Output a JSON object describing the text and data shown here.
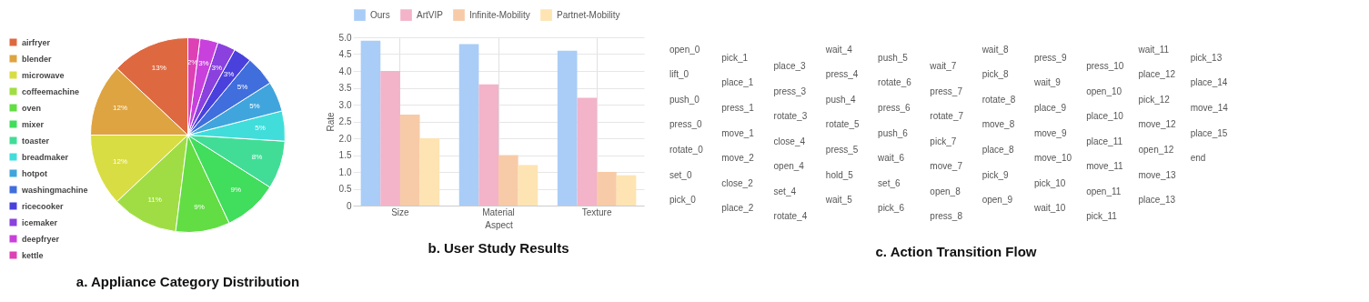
{
  "chart_data": [
    {
      "type": "pie",
      "title": "a. Appliance Category Distribution",
      "categories": [
        "airfryer",
        "blender",
        "microwave",
        "coffeemachine",
        "oven",
        "mixer",
        "toaster",
        "breadmaker",
        "hotpot",
        "washingmachine",
        "ricecooker",
        "icemaker",
        "deepfryer",
        "kettle"
      ],
      "values": [
        13,
        12,
        12,
        11,
        9,
        9,
        8,
        5,
        5,
        5,
        3,
        3,
        3,
        2
      ],
      "value_labels": [
        "13%",
        "12%",
        "12%",
        "11%",
        "9%",
        "9%",
        "8%",
        "5%",
        "5%",
        "5%",
        "3%",
        "3%",
        "3%",
        "2%"
      ],
      "colors": [
        "#de6941",
        "#dea441",
        "#d9dd44",
        "#a0dd44",
        "#62dd44",
        "#41dd5c",
        "#41dd97",
        "#41dddb",
        "#41a5dd",
        "#416edd",
        "#4a41dd",
        "#8a41dd",
        "#c941dd",
        "#dd41b4"
      ],
      "legend": "left"
    },
    {
      "type": "bar",
      "title": "b. User Study Results",
      "xlabel": "Aspect",
      "ylabel": "Rate",
      "categories": [
        "Size",
        "Material",
        "Texture"
      ],
      "series": [
        {
          "name": "Ours",
          "color": "#a9cdf6",
          "values": [
            4.9,
            4.8,
            4.6
          ]
        },
        {
          "name": "ArtVIP",
          "color": "#f3b3c8",
          "values": [
            4.0,
            3.6,
            3.2
          ]
        },
        {
          "name": "Infinite-Mobility",
          "color": "#f7cba7",
          "values": [
            2.7,
            1.5,
            1.0
          ]
        },
        {
          "name": "Partnet-Mobility",
          "color": "#fde4b2",
          "values": [
            2.0,
            1.2,
            0.9
          ]
        }
      ],
      "ylim": [
        0,
        5
      ],
      "yticks": [
        0,
        {
          "value": 0.5,
          "label": "0.5"
        },
        {
          "value": 1,
          "label": "1.0"
        },
        {
          "value": 1.5,
          "label": "1.5"
        },
        {
          "value": 2,
          "label": "2.0"
        },
        {
          "value": 2.5,
          "label": "2.5"
        },
        {
          "value": 3,
          "label": "3.0"
        },
        {
          "value": 3.5,
          "label": "3.5"
        },
        {
          "value": 4,
          "label": "4.0"
        },
        {
          "value": 4.5,
          "label": "4.5"
        },
        {
          "value": 5,
          "label": "5.0"
        }
      ],
      "grid": true,
      "legend": "top"
    },
    {
      "type": "other",
      "title": "c. Action Transition Flow",
      "annotations": [
        "open_0",
        "lift_0",
        "push_0",
        "press_0",
        "rotate_0",
        "set_0",
        "pick_0",
        "pick_1",
        "place_1",
        "press_1",
        "move_1",
        "move_2",
        "close_2",
        "place_2",
        "place_3",
        "press_3",
        "rotate_3",
        "close_4",
        "open_4",
        "set_4",
        "rotate_4",
        "wait_4",
        "press_4",
        "push_4",
        "rotate_5",
        "press_5",
        "hold_5",
        "wait_5",
        "push_5",
        "rotate_6",
        "press_6",
        "push_6",
        "wait_6",
        "set_6",
        "pick_6",
        "wait_7",
        "press_7",
        "rotate_7",
        "pick_7",
        "move_7",
        "open_8",
        "press_8",
        "wait_8",
        "pick_8",
        "rotate_8",
        "move_8",
        "place_8",
        "pick_9",
        "open_9",
        "press_9",
        "wait_9",
        "place_9",
        "move_9",
        "move_10",
        "pick_10",
        "wait_10",
        "press_10",
        "open_10",
        "place_10",
        "place_11",
        "move_11",
        "open_11",
        "pick_11",
        "wait_11",
        "place_12",
        "pick_12",
        "move_12",
        "open_12",
        "move_13",
        "place_13",
        "pick_13",
        "place_14",
        "move_14",
        "place_15",
        "end"
      ]
    }
  ]
}
